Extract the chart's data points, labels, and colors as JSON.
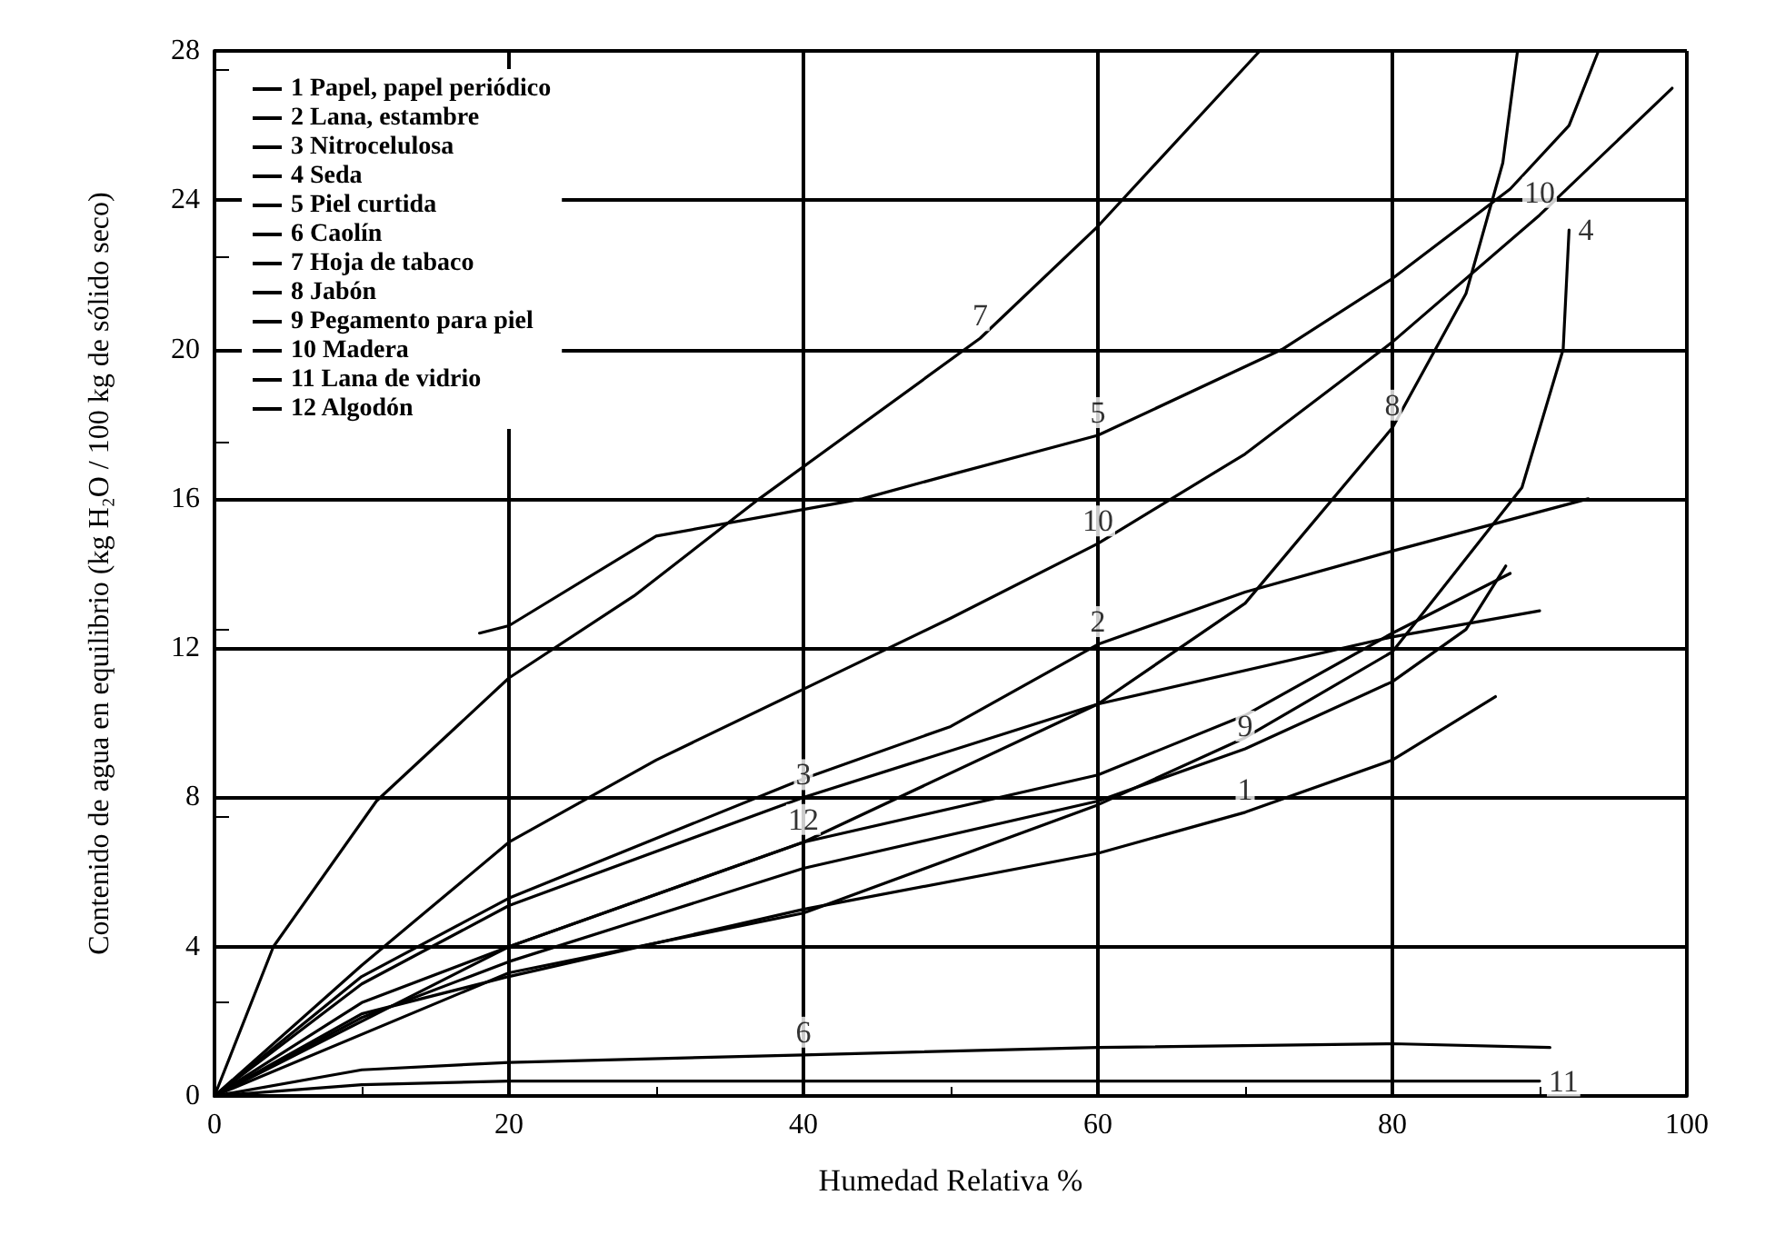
{
  "chart_data": {
    "type": "line",
    "xlabel": "Humedad Relativa %",
    "ylabel": "Contenido de agua en equilibrio (kg H₂O / 100 kg de sólido seco)",
    "xlim": [
      0,
      100
    ],
    "xticks": [
      0,
      20,
      40,
      60,
      80,
      100
    ],
    "ylim": [
      0,
      28
    ],
    "yticks": [
      0,
      4,
      8,
      12,
      16,
      20,
      24,
      28
    ],
    "grid": true,
    "legend": "top left",
    "marker": "none",
    "line_style": "solid",
    "series": [
      {
        "name": "1 Papel, papel periódico",
        "color": "#000000",
        "x": [
          0,
          10,
          20,
          40,
          60,
          70,
          80,
          87
        ],
        "values": [
          0,
          2.2,
          3.2,
          5.0,
          6.5,
          7.6,
          9.0,
          10.7
        ]
      },
      {
        "name": "2 Lana, estambre",
        "color": "#000000",
        "x": [
          0,
          10,
          20,
          40,
          50,
          60,
          70,
          80,
          93.3
        ],
        "values": [
          0,
          3.2,
          5.3,
          8.5,
          9.9,
          12.1,
          13.5,
          14.6,
          16
        ]
      },
      {
        "name": "3 Nitrocelulosa",
        "color": "#000000",
        "x": [
          0,
          10,
          20,
          40,
          60,
          80,
          90
        ],
        "values": [
          0,
          3,
          5.1,
          8.0,
          10.5,
          12.3,
          13
        ]
      },
      {
        "name": "4 Seda",
        "color": "#000000",
        "x": [
          0,
          20,
          40,
          60,
          70,
          80,
          83,
          88.8,
          91.6,
          92
        ],
        "values": [
          0,
          3.3,
          4.9,
          7.8,
          9.6,
          11.9,
          13.4,
          16.3,
          20,
          23.2
        ]
      },
      {
        "name": "5 Piel curtida",
        "color": "#000000",
        "x": [
          18,
          20,
          30,
          44,
          50.5,
          60,
          72.5,
          80,
          88,
          92,
          94
        ],
        "values": [
          12.4,
          12.6,
          15,
          16,
          16.7,
          17.7,
          20,
          21.9,
          24.3,
          26,
          28
        ]
      },
      {
        "name": "6 Caolín",
        "color": "#000000",
        "x": [
          0,
          10,
          20,
          40,
          60,
          80,
          90.7
        ],
        "values": [
          0,
          0.7,
          0.9,
          1.1,
          1.3,
          1.4,
          1.3
        ]
      },
      {
        "name": "7 Hoja de tabaco",
        "color": "#000000",
        "x": [
          0,
          4,
          11,
          20,
          28.5,
          37,
          52,
          60,
          71
        ],
        "values": [
          0,
          4,
          7.9,
          11.2,
          13.4,
          16,
          20.3,
          23.3,
          28
        ]
      },
      {
        "name": "8 Jabón",
        "color": "#000000",
        "x": [
          0,
          20,
          40,
          60,
          70,
          80,
          85,
          87.5,
          88.5
        ],
        "values": [
          0,
          4,
          6.8,
          10.5,
          13.2,
          17.9,
          21.5,
          25,
          28
        ]
      },
      {
        "name": "9 Pegamento para piel",
        "color": "#000000",
        "x": [
          0,
          10,
          20,
          40,
          60,
          70,
          80,
          85,
          87.7
        ],
        "values": [
          0,
          2.1,
          3.6,
          6.1,
          7.9,
          9.3,
          11.1,
          12.5,
          14.2
        ]
      },
      {
        "name": "10 Madera",
        "color": "#000000",
        "x": [
          0,
          10,
          20,
          30,
          40,
          50,
          60,
          70,
          80,
          90,
          99
        ],
        "values": [
          0,
          3.5,
          6.8,
          9,
          10.9,
          12.8,
          14.8,
          17.2,
          20.2,
          23.6,
          27
        ]
      },
      {
        "name": "11 Lana de vidrio",
        "color": "#000000",
        "x": [
          0,
          10,
          20,
          40,
          60,
          80,
          90
        ],
        "values": [
          0,
          0.3,
          0.4,
          0.4,
          0.4,
          0.4,
          0.4
        ]
      },
      {
        "name": "12 Algodón",
        "color": "#000000",
        "x": [
          0,
          10,
          20,
          40,
          60,
          70,
          80,
          88
        ],
        "values": [
          0,
          2.5,
          4.0,
          6.8,
          8.6,
          10.2,
          12.4,
          14
        ]
      }
    ],
    "annotations": [
      {
        "text": "1",
        "x": 70,
        "y": 7.6
      },
      {
        "text": "2",
        "x": 60,
        "y": 12.1
      },
      {
        "text": "3",
        "x": 40,
        "y": 8.0
      },
      {
        "text": "4",
        "x": 92,
        "y": 23.2
      },
      {
        "text": "5",
        "x": 60,
        "y": 17.7
      },
      {
        "text": "6",
        "x": 40,
        "y": 1.1
      },
      {
        "text": "7",
        "x": 52,
        "y": 20.3
      },
      {
        "text": "8",
        "x": 80,
        "y": 17.9
      },
      {
        "text": "9",
        "x": 70,
        "y": 9.3
      },
      {
        "text": "10",
        "x": 60,
        "y": 14.8
      },
      {
        "text": "10",
        "x": 90,
        "y": 23.6
      },
      {
        "text": "11",
        "x": 90,
        "y": 0.4
      },
      {
        "text": "12",
        "x": 40,
        "y": 6.8
      }
    ]
  }
}
